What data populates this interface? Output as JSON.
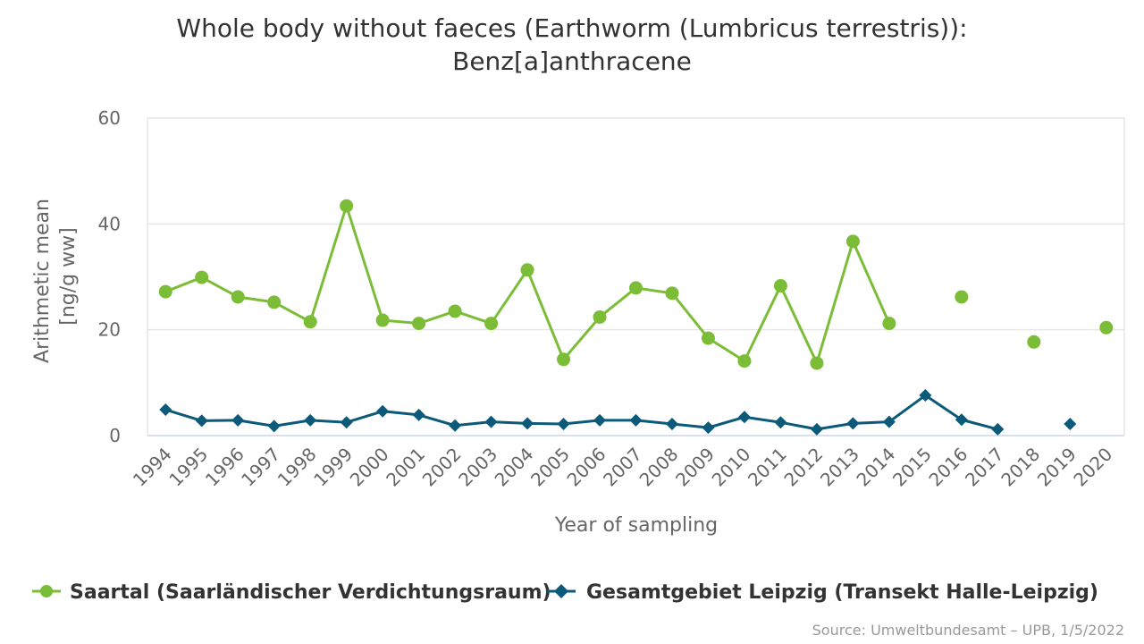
{
  "colors": {
    "saartal": "#7cbd38",
    "leipzig": "#0b5a7a",
    "grid": "#e6e6e6",
    "axis": "#ccd6eb"
  },
  "chart_data": {
    "type": "line",
    "title": [
      "Whole body without faeces (Earthworm (Lumbricus terrestris)):",
      "Benz[a]anthracene"
    ],
    "xlabel": "Year of sampling",
    "ylabel": [
      "Arithmetic mean",
      "[ng/g ww]"
    ],
    "ylim": [
      0,
      60
    ],
    "yticks": [
      0,
      20,
      40,
      60
    ],
    "categories": [
      "1994",
      "1995",
      "1996",
      "1997",
      "1998",
      "1999",
      "2000",
      "2001",
      "2002",
      "2003",
      "2004",
      "2005",
      "2006",
      "2007",
      "2008",
      "2009",
      "2010",
      "2011",
      "2012",
      "2013",
      "2014",
      "2015",
      "2016",
      "2017",
      "2018",
      "2019",
      "2020"
    ],
    "series": [
      {
        "name": "Saartal (Saarländischer Verdichtungsraum)",
        "marker": "circle",
        "values": [
          27.2,
          29.9,
          26.2,
          25.2,
          21.5,
          43.4,
          21.8,
          21.2,
          23.5,
          21.2,
          31.3,
          14.4,
          22.4,
          27.9,
          26.9,
          18.4,
          14.1,
          28.3,
          13.7,
          36.7,
          21.2,
          null,
          26.2,
          null,
          17.7,
          null,
          20.4
        ]
      },
      {
        "name": "Gesamtgebiet Leipzig (Transekt Halle-Leipzig)",
        "marker": "diamond",
        "values": [
          4.9,
          2.8,
          2.9,
          1.8,
          2.9,
          2.5,
          4.6,
          3.9,
          1.9,
          2.6,
          2.3,
          2.2,
          2.9,
          2.9,
          2.2,
          1.5,
          3.5,
          2.5,
          1.2,
          2.3,
          2.6,
          7.6,
          3.0,
          1.2,
          null,
          2.2,
          null
        ]
      }
    ],
    "legend_position": "bottom",
    "grid": true
  },
  "credits": "Source: Umweltbundesamt – UPB, 1/5/2022"
}
